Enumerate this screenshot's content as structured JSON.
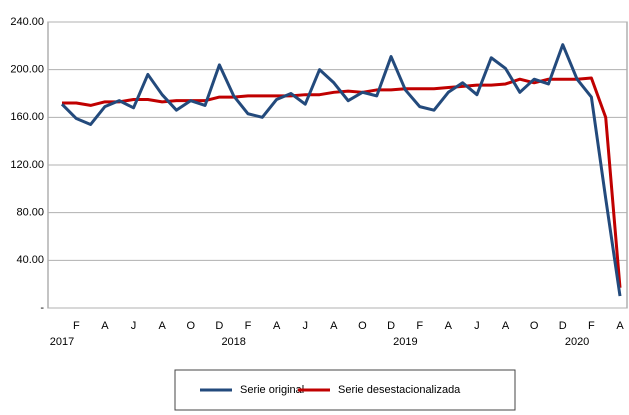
{
  "chart_data": {
    "type": "line",
    "categories": [
      null,
      "F",
      null,
      "A",
      null,
      "J",
      null,
      "A",
      null,
      "O",
      null,
      "D",
      null,
      "F",
      null,
      "A",
      null,
      "J",
      null,
      "A",
      null,
      "O",
      null,
      "D",
      null,
      "F",
      null,
      "A",
      null,
      "J",
      null,
      "A",
      null,
      "O",
      null,
      "D",
      null,
      "F",
      null,
      "A"
    ],
    "category_groups": [
      "2017",
      null,
      null,
      null,
      null,
      null,
      null,
      null,
      null,
      null,
      null,
      null,
      "2018",
      null,
      null,
      null,
      null,
      null,
      null,
      null,
      null,
      null,
      null,
      null,
      "2019",
      null,
      null,
      null,
      null,
      null,
      null,
      null,
      null,
      null,
      null,
      null,
      "2020",
      null,
      null,
      null
    ],
    "series": [
      {
        "name": "Serie original",
        "color": "#234a7c",
        "values": [
          171,
          159,
          154,
          169,
          174,
          168,
          196,
          179,
          166,
          174,
          170,
          204,
          178,
          163,
          160,
          175,
          180,
          171,
          200,
          189,
          174,
          181,
          178,
          211,
          183,
          169,
          166,
          181,
          189,
          179,
          210,
          201,
          181,
          192,
          188,
          221,
          192,
          177,
          92,
          10
        ]
      },
      {
        "name": "Serie desestacionalizada",
        "color": "#c00000",
        "values": [
          172,
          172,
          170,
          173,
          173,
          175,
          175,
          173,
          174,
          174,
          174,
          177,
          177,
          178,
          178,
          178,
          178,
          179,
          179,
          181,
          182,
          181,
          183,
          183,
          184,
          184,
          184,
          185,
          186,
          187,
          187,
          188,
          192,
          189,
          192,
          192,
          192,
          193,
          160,
          17
        ]
      }
    ],
    "ylim": [
      0,
      240
    ],
    "yticks": [
      {
        "value": 0,
        "label": "-"
      },
      {
        "value": 40,
        "label": "40.00"
      },
      {
        "value": 80,
        "label": "80.00"
      },
      {
        "value": 120,
        "label": "120.00"
      },
      {
        "value": 160,
        "label": "160.00"
      },
      {
        "value": 200,
        "label": "200.00"
      },
      {
        "value": 240,
        "label": "240.00"
      }
    ],
    "grid": true
  }
}
